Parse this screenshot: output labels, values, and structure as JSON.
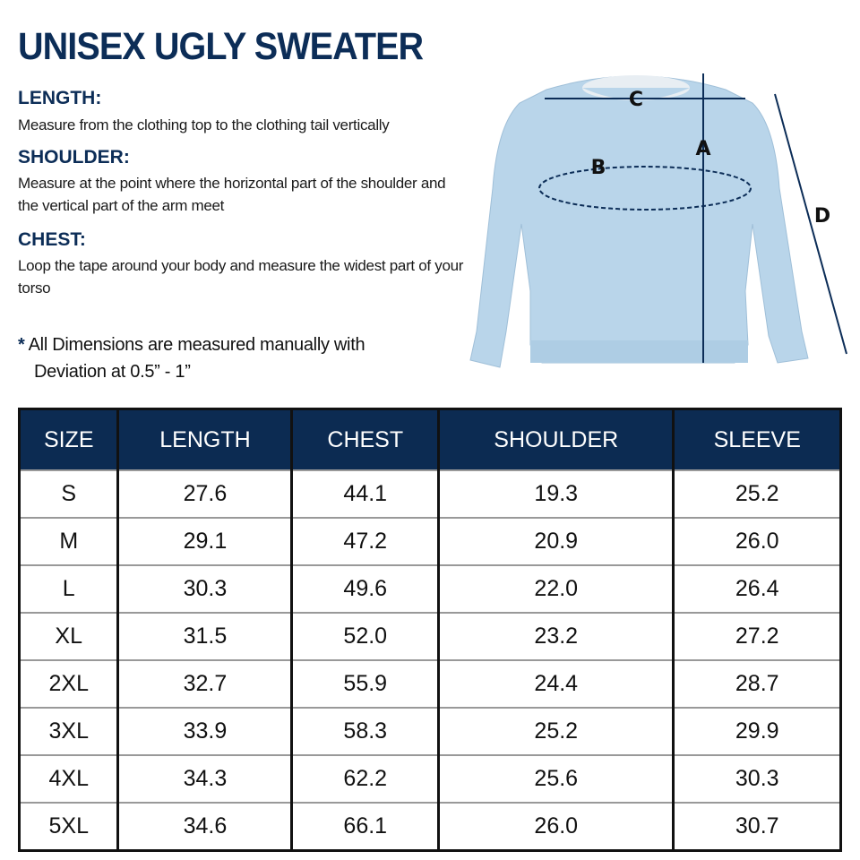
{
  "title": "UNISEX UGLY SWEATER",
  "sections": [
    {
      "heading": "LENGTH:",
      "text": "Measure from the clothing top to the clothing tail vertically"
    },
    {
      "heading": "SHOULDER:",
      "text": "Measure at the point where the horizontal part of the shoulder and the vertical part of the arm meet"
    },
    {
      "heading": "CHEST:",
      "text": "Loop the tape around your body and measure the widest part of your torso"
    }
  ],
  "note": {
    "star": "*",
    "line1": "All Dimensions are measured manually with",
    "line2": "Deviation at 0.5” - 1”"
  },
  "diagram": {
    "labels": {
      "a": "A",
      "b": "B",
      "c": "C",
      "d": "D"
    },
    "sweater_color": "#b9d5ea",
    "line_color": "#0c2d57"
  },
  "table": {
    "headers": [
      "SIZE",
      "LENGTH",
      "CHEST",
      "SHOULDER",
      "SLEEVE"
    ],
    "rows": [
      [
        "S",
        "27.6",
        "44.1",
        "19.3",
        "25.2"
      ],
      [
        "M",
        "29.1",
        "47.2",
        "20.9",
        "26.0"
      ],
      [
        "L",
        "30.3",
        "49.6",
        "22.0",
        "26.4"
      ],
      [
        "XL",
        "31.5",
        "52.0",
        "23.2",
        "27.2"
      ],
      [
        "2XL",
        "32.7",
        "55.9",
        "24.4",
        "28.7"
      ],
      [
        "3XL",
        "33.9",
        "58.3",
        "25.2",
        "29.9"
      ],
      [
        "4XL",
        "34.3",
        "62.2",
        "25.6",
        "30.3"
      ],
      [
        "5XL",
        "34.6",
        "66.1",
        "26.0",
        "30.7"
      ]
    ]
  }
}
